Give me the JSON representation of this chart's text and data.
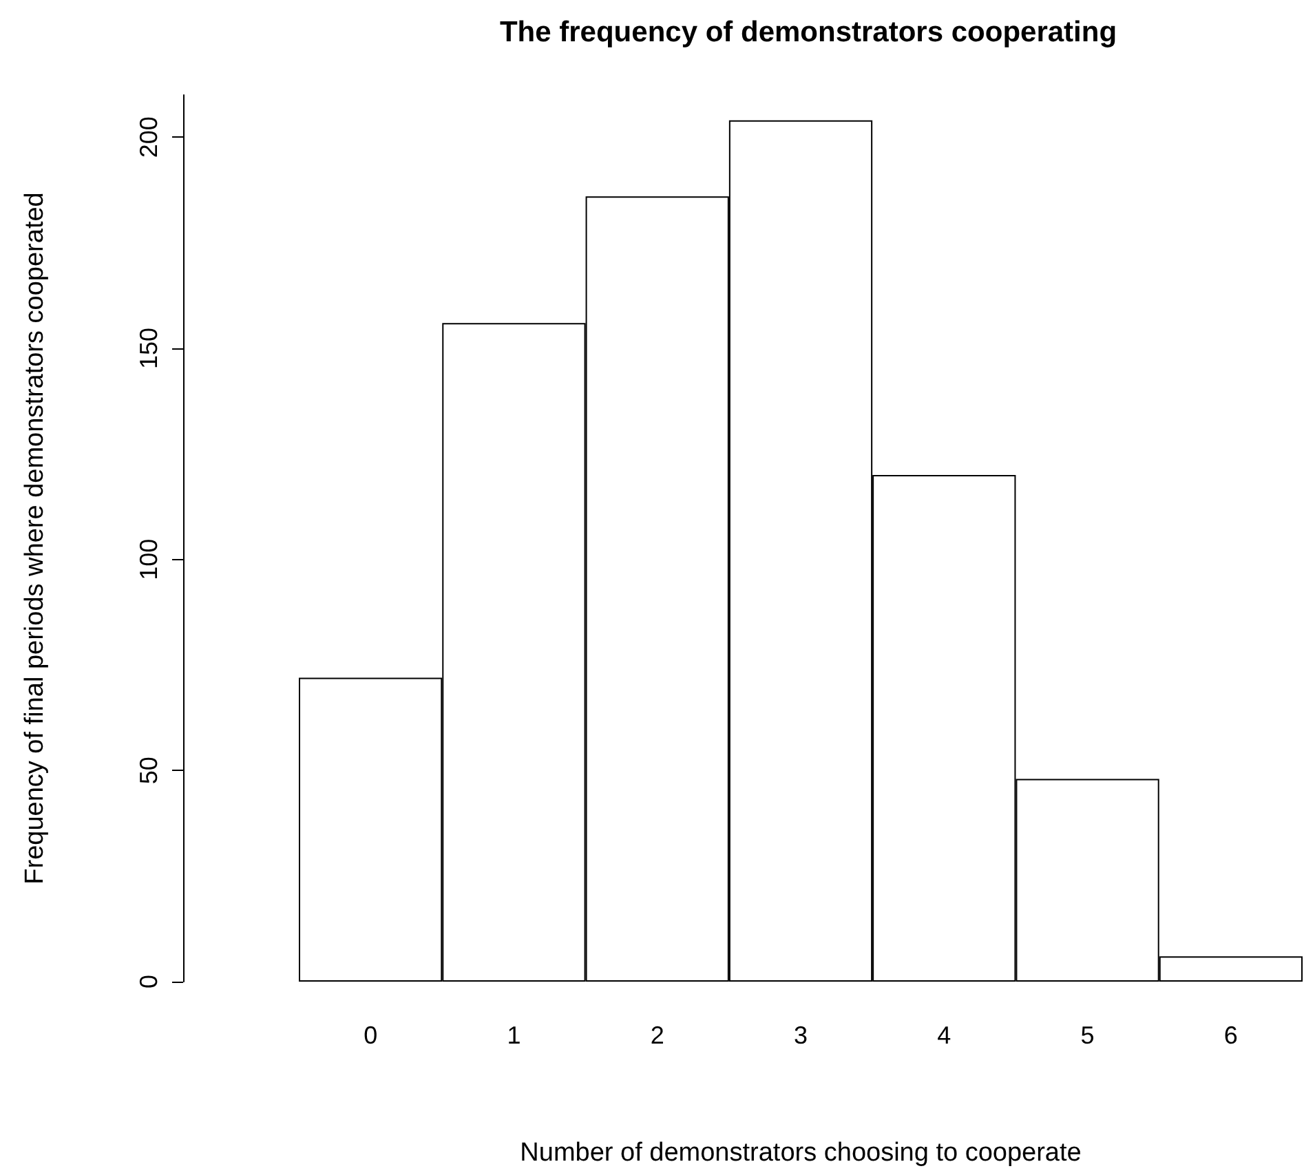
{
  "chart_data": {
    "type": "bar",
    "title": "The frequency of demonstrators cooperating",
    "xlabel": "Number of demonstrators choosing to cooperate",
    "ylabel": "Frequency of final periods where demonstrators cooperated",
    "categories": [
      "0",
      "1",
      "2",
      "3",
      "4",
      "5",
      "6"
    ],
    "values": [
      72,
      156,
      186,
      204,
      120,
      48,
      6
    ],
    "color": "#ffffff",
    "ylim": [
      0,
      210
    ],
    "yticks": [
      0,
      50,
      100,
      150,
      200
    ],
    "grid": false
  }
}
